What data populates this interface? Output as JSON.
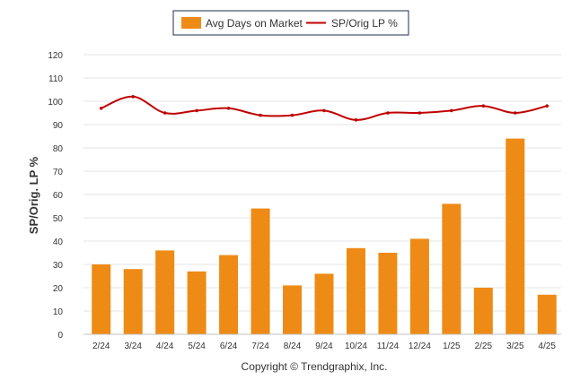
{
  "colors": {
    "bar": "#EE8B16",
    "line": "#C00000",
    "grid": "#E6E6E6"
  },
  "legend": {
    "bar_label": "Avg Days on Market",
    "line_label": "SP/Orig LP %"
  },
  "footer": {
    "copyright": "Copyright © Trendgraphix, Inc."
  },
  "chart_data": {
    "type": "bar",
    "title": "",
    "xlabel": "",
    "ylabel": "SP/Orig. LP %",
    "ylim": [
      0,
      120
    ],
    "yticks": [
      0,
      10,
      20,
      30,
      40,
      50,
      60,
      70,
      80,
      90,
      100,
      110,
      120
    ],
    "grid": true,
    "legend_position": "top-center",
    "categories": [
      "2/24",
      "3/24",
      "4/24",
      "5/24",
      "6/24",
      "7/24",
      "8/24",
      "9/24",
      "10/24",
      "11/24",
      "12/24",
      "1/25",
      "2/25",
      "3/25",
      "4/25"
    ],
    "series": [
      {
        "name": "Avg Days on Market",
        "type": "bar",
        "values": [
          30,
          28,
          36,
          27,
          34,
          54,
          21,
          26,
          37,
          35,
          41,
          56,
          20,
          84,
          17
        ]
      },
      {
        "name": "SP/Orig LP %",
        "type": "line",
        "values": [
          97,
          102,
          95,
          96,
          97,
          94,
          94,
          96,
          92,
          95,
          95,
          96,
          98,
          95,
          98
        ]
      }
    ]
  }
}
